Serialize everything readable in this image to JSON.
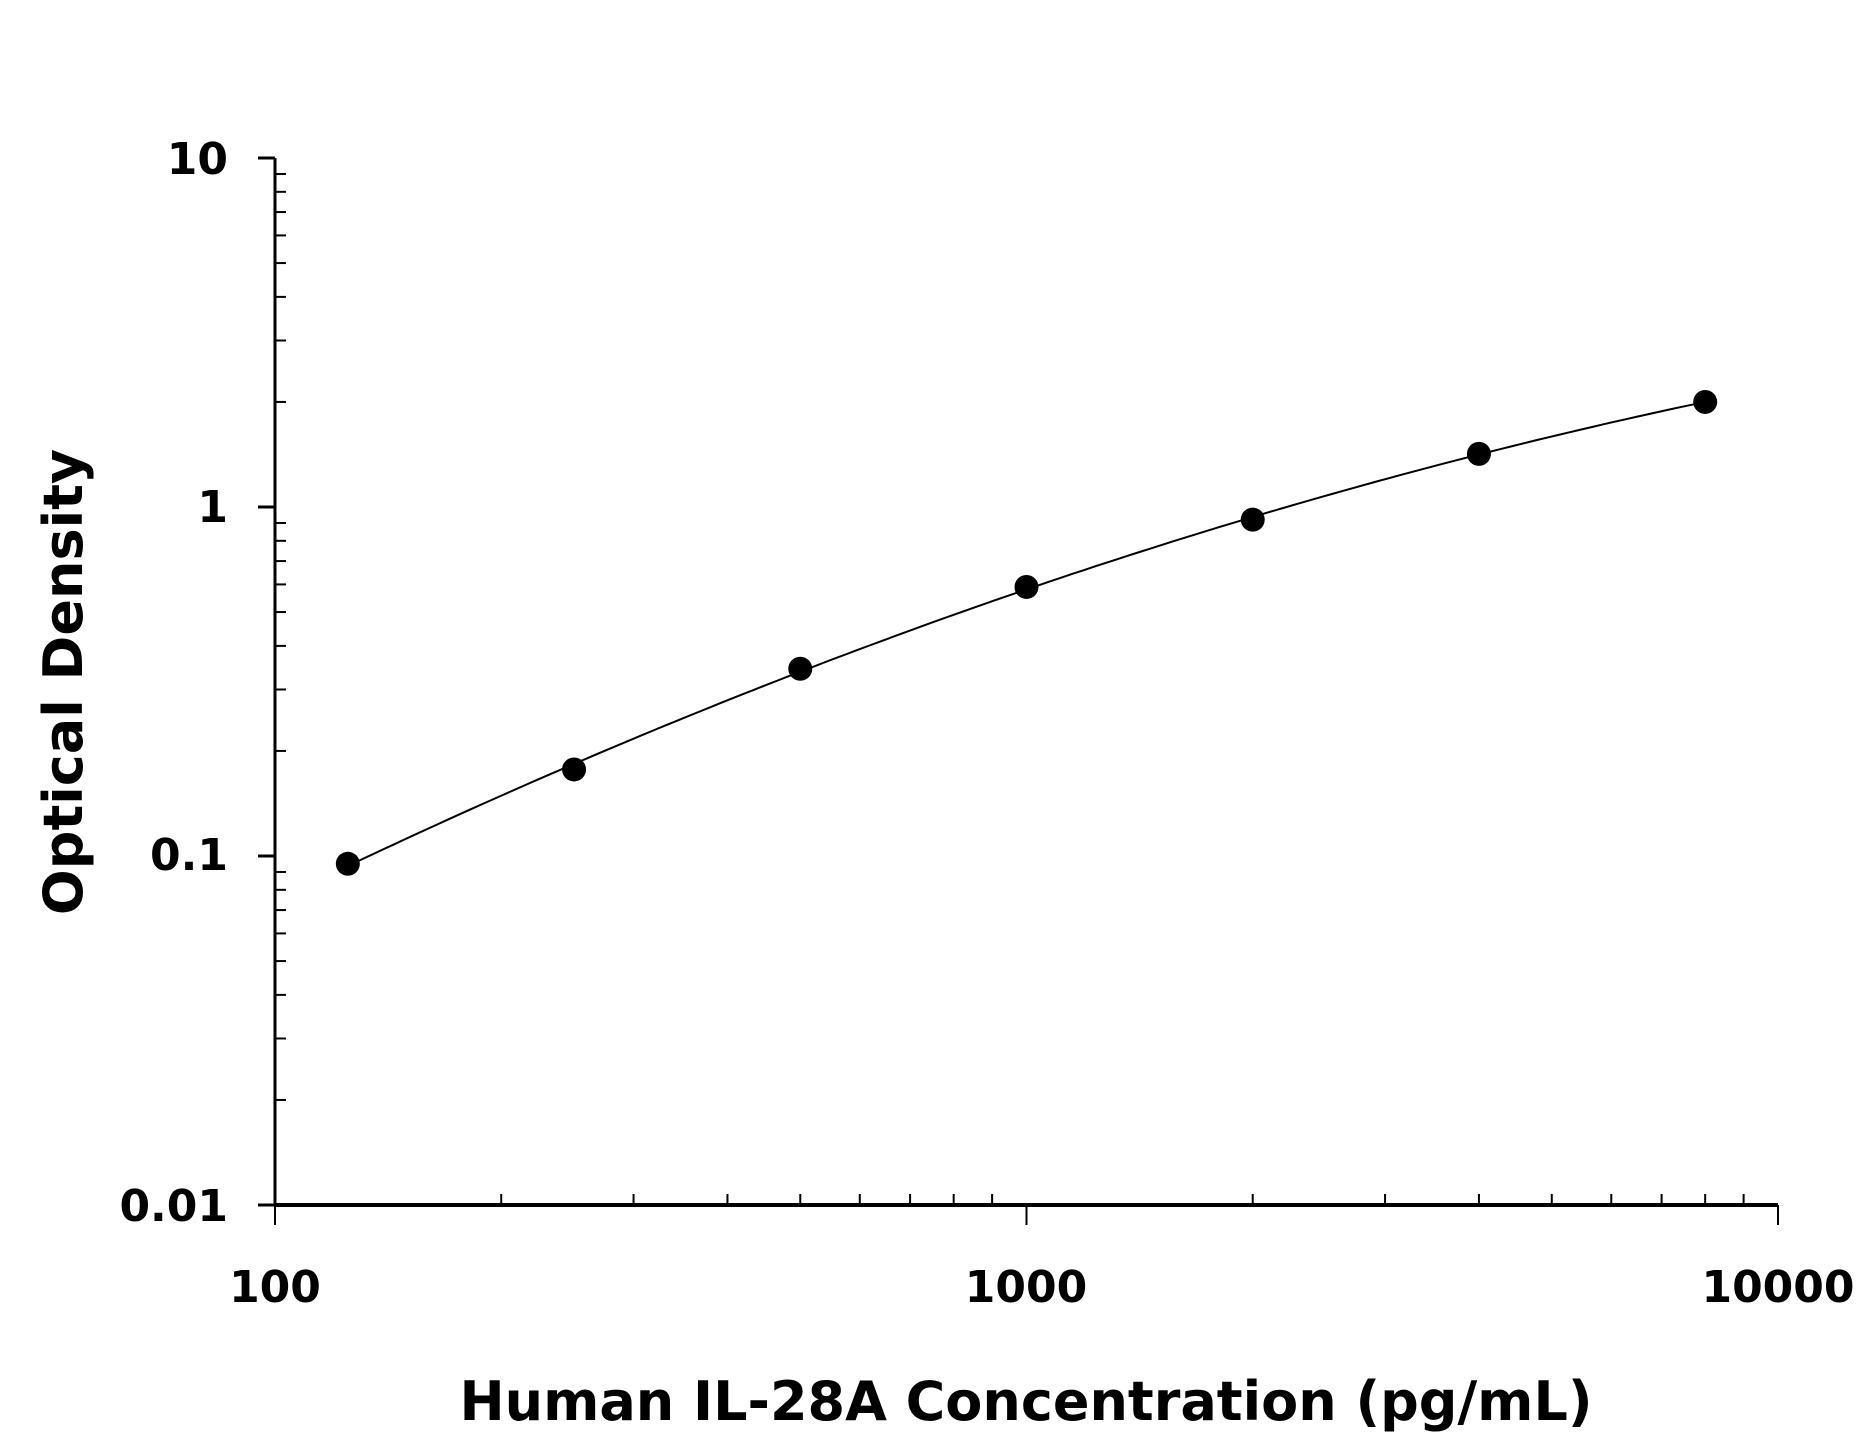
{
  "chart_data": {
    "type": "scatter",
    "title": "",
    "xlabel": "Human IL-28A Concentration (pg/mL)",
    "ylabel": "Optical Density",
    "x_scale": "log",
    "y_scale": "log",
    "xlim": [
      100,
      10000
    ],
    "ylim": [
      0.01,
      10
    ],
    "x_ticks": [
      "100",
      "1000",
      "10000"
    ],
    "y_ticks": [
      "0.01",
      "0.1",
      "1",
      "10"
    ],
    "grid": false,
    "fit_curve": true,
    "point_color": "#000000",
    "series": [
      {
        "x": [
          125,
          250,
          500,
          1000,
          2000,
          4000,
          8000
        ],
        "y": [
          0.095,
          0.177,
          0.344,
          0.59,
          0.92,
          1.42,
          2.0
        ]
      }
    ]
  }
}
